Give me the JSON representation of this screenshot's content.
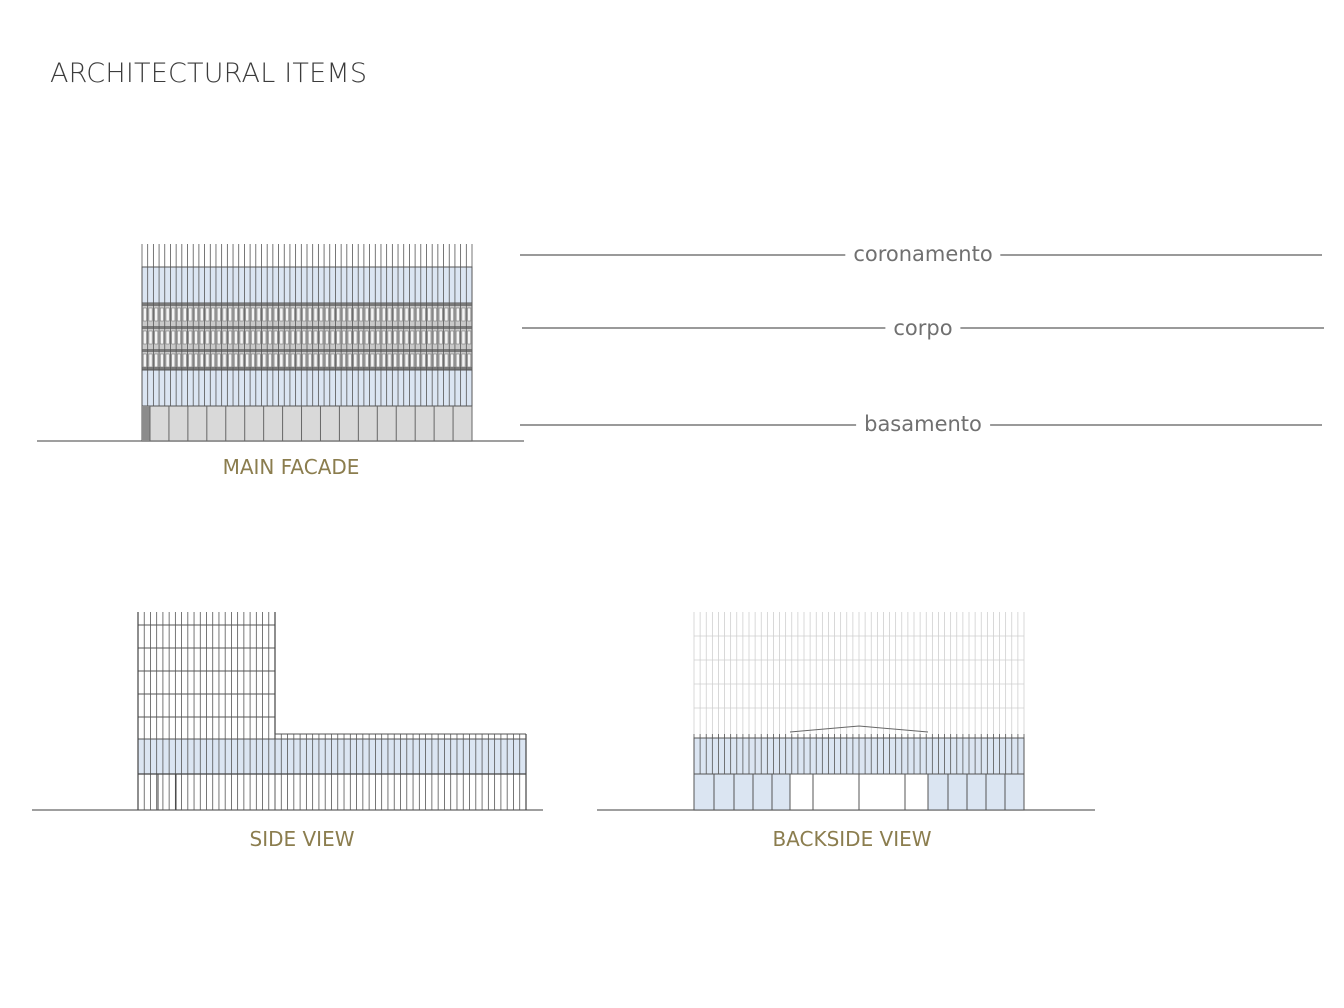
{
  "title": "ARCHITECTURAL ITEMS",
  "levels": [
    {
      "label": "coronamento"
    },
    {
      "label": "corpo"
    },
    {
      "label": "basamento"
    }
  ],
  "views": {
    "main_facade": "MAIN FACADE",
    "side_view": "SIDE VIEW",
    "backside_view": "BACKSIDE VIEW"
  },
  "colors": {
    "glass": "#dbe5f2",
    "line": "#555555",
    "caption": "#8b7d4e",
    "level_text": "#707070"
  }
}
